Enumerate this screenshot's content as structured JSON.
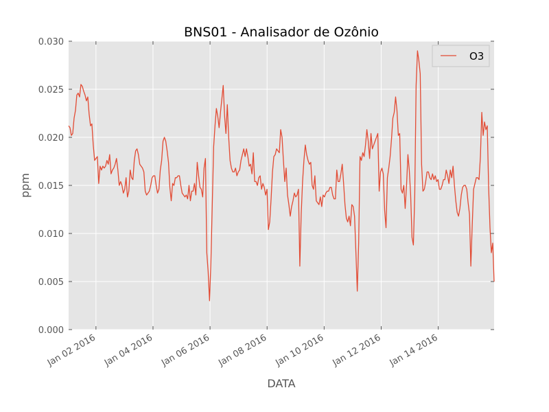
{
  "chart_data": {
    "type": "line",
    "title": "BNS01 - Analisador de Ozônio",
    "xlabel": "DATA",
    "ylabel": "ppm",
    "ylim": [
      0.0,
      0.03
    ],
    "xlim": [
      "2016-01-01T01:00",
      "2016-01-15T23:00"
    ],
    "y_ticks": [
      0.0,
      0.005,
      0.01,
      0.015,
      0.02,
      0.025,
      0.03
    ],
    "y_tick_labels": [
      "0.000",
      "0.005",
      "0.010",
      "0.015",
      "0.020",
      "0.025",
      "0.030"
    ],
    "x_ticks": [
      "2016-01-02",
      "2016-01-04",
      "2016-01-06",
      "2016-01-08",
      "2016-01-10",
      "2016-01-12",
      "2016-01-14"
    ],
    "x_tick_labels": [
      "Jan 02 2016",
      "Jan 04 2016",
      "Jan 06 2016",
      "Jan 08 2016",
      "Jan 10 2016",
      "Jan 12 2016",
      "Jan 14 2016"
    ],
    "grid": true,
    "legend": "top-right",
    "background_color": "#e5e5e5",
    "series": [
      {
        "name": "O3",
        "color": "#e24a33",
        "x_start": "2016-01-01T01:00",
        "x_step_hours": 1,
        "values": [
          0.0212,
          0.021,
          0.0202,
          0.0204,
          0.022,
          0.0228,
          0.0244,
          0.0246,
          0.0242,
          0.0255,
          0.0253,
          0.0248,
          0.0244,
          0.0238,
          0.0242,
          0.0224,
          0.0212,
          0.0214,
          0.0192,
          0.0176,
          0.0178,
          0.018,
          0.0152,
          0.017,
          0.0166,
          0.017,
          0.0168,
          0.017,
          0.0176,
          0.0172,
          0.0182,
          0.0162,
          0.0166,
          0.0168,
          0.0172,
          0.0178,
          0.0166,
          0.015,
          0.0154,
          0.015,
          0.0142,
          0.0146,
          0.0158,
          0.0138,
          0.0144,
          0.0166,
          0.0158,
          0.0156,
          0.0176,
          0.0186,
          0.0188,
          0.0182,
          0.0172,
          0.017,
          0.0168,
          0.0164,
          0.0144,
          0.014,
          0.0142,
          0.0144,
          0.015,
          0.0158,
          0.016,
          0.016,
          0.015,
          0.0142,
          0.0146,
          0.0166,
          0.0176,
          0.0196,
          0.02,
          0.0196,
          0.0186,
          0.0174,
          0.0148,
          0.0134,
          0.0152,
          0.015,
          0.0158,
          0.0158,
          0.016,
          0.016,
          0.015,
          0.0142,
          0.014,
          0.0138,
          0.014,
          0.0136,
          0.015,
          0.0134,
          0.0144,
          0.0144,
          0.0152,
          0.014,
          0.0174,
          0.016,
          0.0148,
          0.0146,
          0.0138,
          0.0168,
          0.0178,
          0.008,
          0.006,
          0.003,
          0.007,
          0.013,
          0.019,
          0.0212,
          0.023,
          0.0222,
          0.021,
          0.0226,
          0.024,
          0.0254,
          0.0222,
          0.0204,
          0.0234,
          0.02,
          0.0176,
          0.0168,
          0.0164,
          0.0164,
          0.0168,
          0.016,
          0.0164,
          0.0166,
          0.0176,
          0.0182,
          0.0188,
          0.018,
          0.0188,
          0.018,
          0.017,
          0.0172,
          0.0162,
          0.0184,
          0.0154,
          0.0154,
          0.015,
          0.0158,
          0.016,
          0.0146,
          0.0152,
          0.0148,
          0.014,
          0.0146,
          0.0104,
          0.0112,
          0.0136,
          0.0164,
          0.018,
          0.0182,
          0.0188,
          0.0186,
          0.0184,
          0.0208,
          0.02,
          0.0176,
          0.0154,
          0.0168,
          0.014,
          0.013,
          0.0118,
          0.0128,
          0.0134,
          0.0142,
          0.0138,
          0.014,
          0.0146,
          0.0066,
          0.012,
          0.0154,
          0.0176,
          0.0192,
          0.0182,
          0.0176,
          0.0172,
          0.0174,
          0.015,
          0.0146,
          0.016,
          0.0134,
          0.0132,
          0.013,
          0.0138,
          0.0128,
          0.014,
          0.0138,
          0.0142,
          0.0144,
          0.0144,
          0.0148,
          0.0148,
          0.014,
          0.0136,
          0.0136,
          0.0166,
          0.0154,
          0.0154,
          0.0162,
          0.0172,
          0.0152,
          0.013,
          0.0116,
          0.0112,
          0.0118,
          0.0108,
          0.013,
          0.0128,
          0.0118,
          0.008,
          0.004,
          0.009,
          0.018,
          0.0176,
          0.0184,
          0.018,
          0.0192,
          0.0208,
          0.0196,
          0.0178,
          0.0204,
          0.0188,
          0.0192,
          0.0196,
          0.02,
          0.0204,
          0.0144,
          0.0164,
          0.0168,
          0.0162,
          0.0124,
          0.0106,
          0.0158,
          0.0168,
          0.018,
          0.0198,
          0.022,
          0.0226,
          0.0242,
          0.0228,
          0.0202,
          0.0204,
          0.0146,
          0.0142,
          0.015,
          0.0126,
          0.015,
          0.0182,
          0.0166,
          0.014,
          0.0096,
          0.0088,
          0.014,
          0.0254,
          0.029,
          0.028,
          0.0266,
          0.0172,
          0.0144,
          0.0146,
          0.0154,
          0.0164,
          0.0164,
          0.0158,
          0.0156,
          0.0162,
          0.0156,
          0.016,
          0.0154,
          0.0156,
          0.0146,
          0.0146,
          0.015,
          0.0156,
          0.0156,
          0.0166,
          0.016,
          0.0152,
          0.0166,
          0.0158,
          0.017,
          0.015,
          0.0134,
          0.0122,
          0.0118,
          0.0126,
          0.014,
          0.0148,
          0.015,
          0.015,
          0.0146,
          0.0132,
          0.012,
          0.0066,
          0.0108,
          0.0146,
          0.0152,
          0.0158,
          0.0158,
          0.0156,
          0.018,
          0.0226,
          0.0202,
          0.0216,
          0.0208,
          0.0212,
          0.0148,
          0.0106,
          0.008,
          0.009,
          0.005
        ]
      }
    ]
  }
}
